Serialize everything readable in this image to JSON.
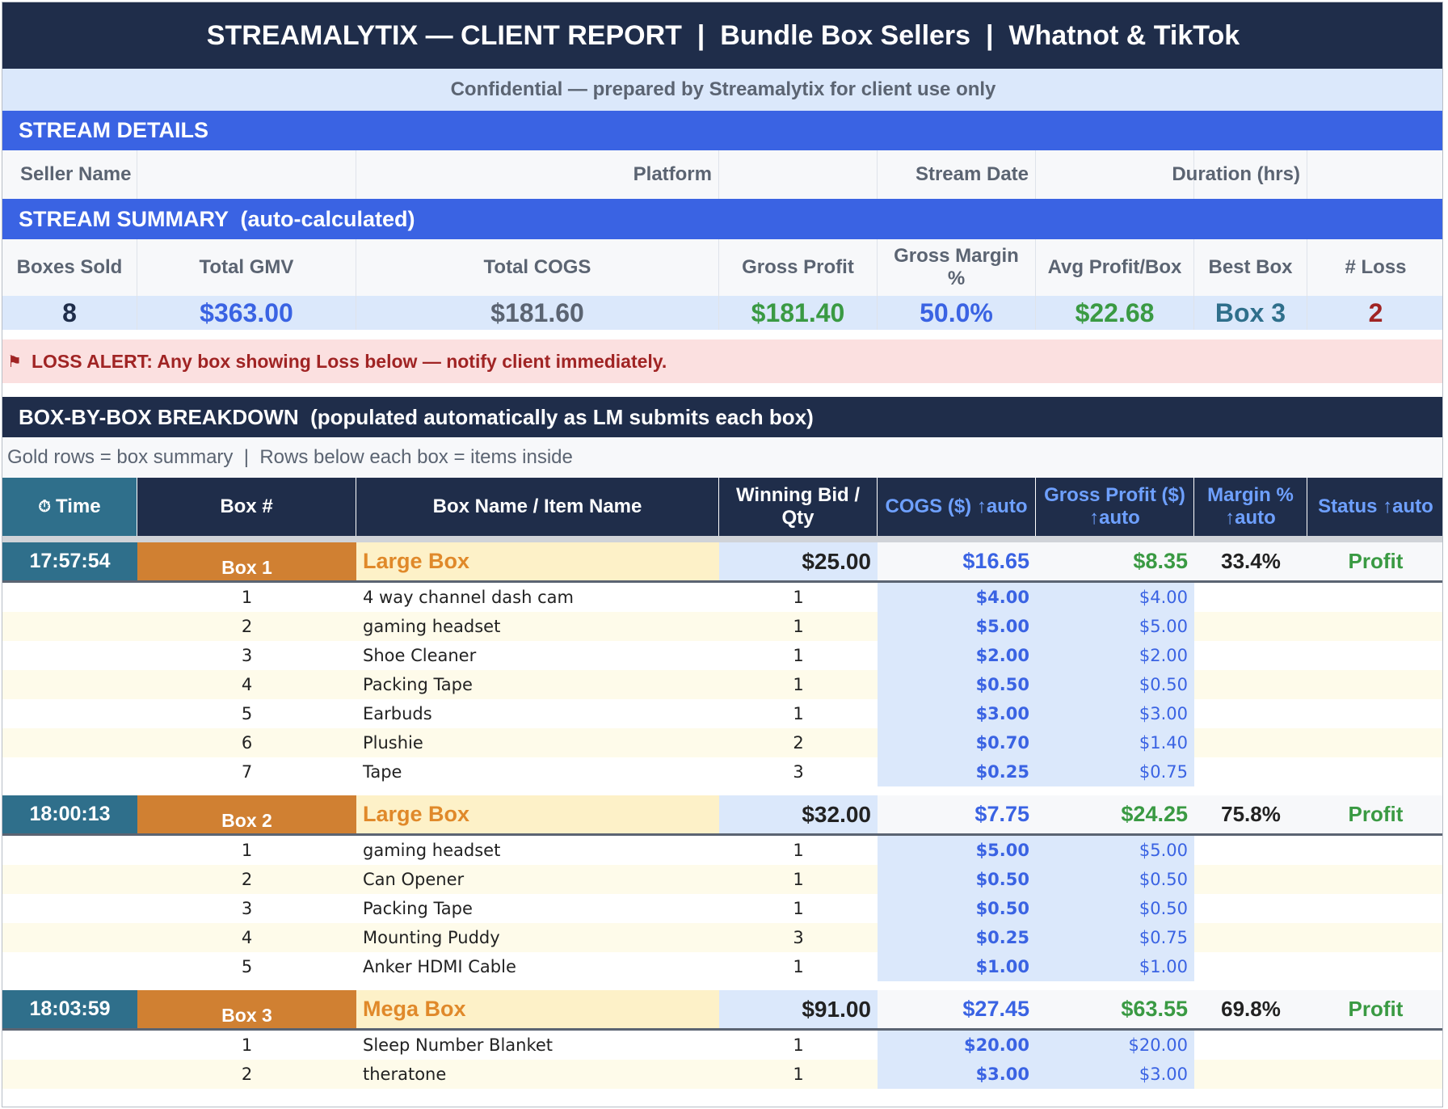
{
  "title": "STREAMALYTIX — CLIENT REPORT  |  Bundle Box Sellers  |  Whatnot & TikTok",
  "confidential": "Confidential — prepared by Streamalytix for client use only",
  "stream_details": {
    "band": "STREAM DETAILS",
    "seller_name_label": "Seller Name",
    "platform_label": "Platform",
    "stream_date_label": "Stream Date",
    "duration_label": "Duration (hrs)"
  },
  "stream_summary": {
    "band": "STREAM SUMMARY  (auto-calculated)",
    "headers": [
      "Boxes Sold",
      "Total GMV",
      "Total COGS",
      "Gross Profit",
      "Gross Margin %",
      "Avg Profit/Box",
      "Best Box",
      "# Loss"
    ],
    "values": [
      "8",
      "$363.00",
      "$181.60",
      "$181.40",
      "50.0%",
      "$22.68",
      "Box 3",
      "2"
    ],
    "value_colors": [
      "#1f2d4a",
      "#3a63e3",
      "#5b6472",
      "#3a9a43",
      "#3a63e3",
      "#3a9a43",
      "#2f6f8b",
      "#a02424"
    ]
  },
  "loss_alert": {
    "icon": "flag-icon",
    "text": "LOSS ALERT: Any box showing Loss below — notify client immediately."
  },
  "breakdown": {
    "band": "BOX-BY-BOX BREAKDOWN  (populated automatically as LM submits each box)",
    "legend": "Gold rows = box summary  |  Rows below each box = items inside",
    "headers": {
      "time": "Time",
      "box": "Box #",
      "name": "Box Name / Item Name",
      "bid_line1": "Winning Bid /",
      "bid_line2": "Qty",
      "cogs": "COGS ($) ↑auto",
      "gp_line1": "Gross Profit ($)",
      "gp_line2": "↑auto",
      "margin_line1": "Margin %",
      "margin_line2": "↑auto",
      "status": "Status ↑auto"
    },
    "time_icon": "stopwatch-icon"
  },
  "boxes": [
    {
      "time": "17:57:54",
      "box": "Box 1",
      "name": "Large Box",
      "bid": "$25.00",
      "cogs": "$16.65",
      "gross_profit": "$8.35",
      "margin": "33.4%",
      "status": "Profit",
      "items": [
        {
          "no": "1",
          "name": "4 way channel dash cam",
          "qty": "1",
          "cogs": "$4.00",
          "gp": "$4.00"
        },
        {
          "no": "2",
          "name": "gaming headset",
          "qty": "1",
          "cogs": "$5.00",
          "gp": "$5.00"
        },
        {
          "no": "3",
          "name": "Shoe Cleaner",
          "qty": "1",
          "cogs": "$2.00",
          "gp": "$2.00"
        },
        {
          "no": "4",
          "name": "Packing Tape",
          "qty": "1",
          "cogs": "$0.50",
          "gp": "$0.50"
        },
        {
          "no": "5",
          "name": "Earbuds",
          "qty": "1",
          "cogs": "$3.00",
          "gp": "$3.00"
        },
        {
          "no": "6",
          "name": "Plushie",
          "qty": "2",
          "cogs": "$0.70",
          "gp": "$1.40"
        },
        {
          "no": "7",
          "name": "Tape",
          "qty": "3",
          "cogs": "$0.25",
          "gp": "$0.75"
        }
      ]
    },
    {
      "time": "18:00:13",
      "box": "Box 2",
      "name": "Large Box",
      "bid": "$32.00",
      "cogs": "$7.75",
      "gross_profit": "$24.25",
      "margin": "75.8%",
      "status": "Profit",
      "items": [
        {
          "no": "1",
          "name": "gaming headset",
          "qty": "1",
          "cogs": "$5.00",
          "gp": "$5.00"
        },
        {
          "no": "2",
          "name": "Can Opener",
          "qty": "1",
          "cogs": "$0.50",
          "gp": "$0.50"
        },
        {
          "no": "3",
          "name": "Packing Tape",
          "qty": "1",
          "cogs": "$0.50",
          "gp": "$0.50"
        },
        {
          "no": "4",
          "name": "Mounting Puddy",
          "qty": "3",
          "cogs": "$0.25",
          "gp": "$0.75"
        },
        {
          "no": "5",
          "name": "Anker HDMI Cable",
          "qty": "1",
          "cogs": "$1.00",
          "gp": "$1.00"
        }
      ]
    },
    {
      "time": "18:03:59",
      "box": "Box 3",
      "name": "Mega Box",
      "bid": "$91.00",
      "cogs": "$27.45",
      "gross_profit": "$63.55",
      "margin": "69.8%",
      "status": "Profit",
      "items": [
        {
          "no": "1",
          "name": "Sleep Number Blanket",
          "qty": "1",
          "cogs": "$20.00",
          "gp": "$20.00"
        },
        {
          "no": "2",
          "name": "theratone",
          "qty": "1",
          "cogs": "$3.00",
          "gp": "$3.00"
        }
      ]
    }
  ]
}
